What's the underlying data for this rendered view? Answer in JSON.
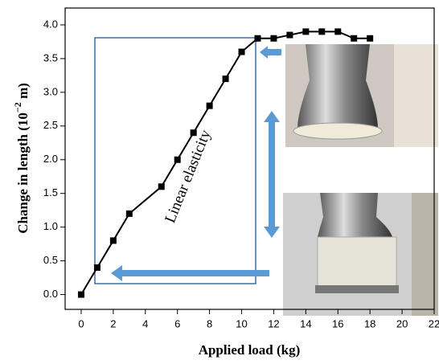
{
  "chart_data": {
    "type": "line",
    "xlabel": "Applied load (kg)",
    "ylabel": {
      "text": "Change in length (10",
      "exponent": "−2",
      "unit": " m)"
    },
    "annotation": "Linear elasticity",
    "x": [
      0,
      1,
      2,
      3,
      5,
      6,
      7,
      8,
      9,
      10,
      11,
      12,
      13,
      14,
      15,
      16,
      17,
      18
    ],
    "values": [
      0,
      0.4,
      0.8,
      1.2,
      1.6,
      2.0,
      2.4,
      2.8,
      3.2,
      3.6,
      3.8,
      3.8,
      3.85,
      3.9,
      3.9,
      3.9,
      3.8,
      3.8
    ],
    "color": "#000000",
    "xlim": [
      -1,
      22
    ],
    "xticks": [
      0,
      2,
      4,
      6,
      8,
      10,
      12,
      14,
      16,
      18,
      20,
      22
    ],
    "ylim": [
      -0.22,
      4.25
    ],
    "yticks": [
      {
        "value": 0,
        "label": "0.0"
      },
      {
        "value": 0.5,
        "label": "0.5"
      },
      {
        "value": 1,
        "label": "1.0"
      },
      {
        "value": 1.5,
        "label": "1.5"
      },
      {
        "value": 2,
        "label": "2.0"
      },
      {
        "value": 2.5,
        "label": "2.5"
      },
      {
        "value": 3,
        "label": "3.0"
      },
      {
        "value": 3.5,
        "label": "3.5"
      },
      {
        "value": 4,
        "label": "4.0"
      }
    ]
  }
}
